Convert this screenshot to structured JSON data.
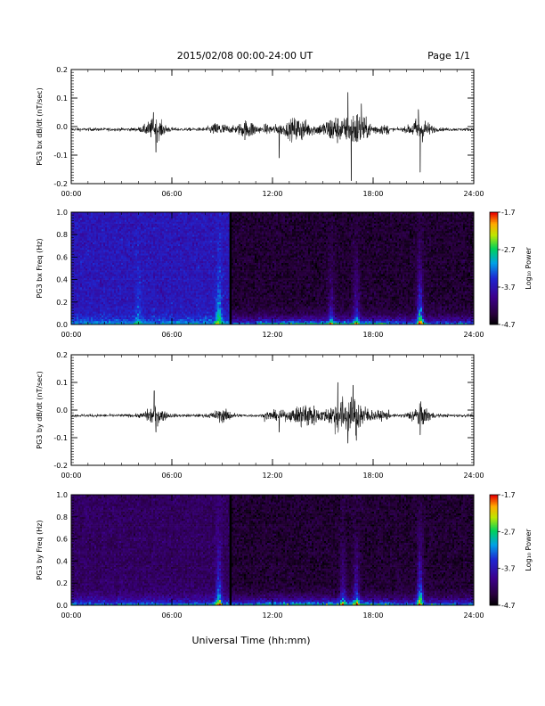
{
  "header": {
    "title": "2015/02/08  00:00-24:00 UT",
    "page": "Page 1/1"
  },
  "footer": {
    "xlabel": "Universal Time (hh:mm)"
  },
  "chart_data": [
    {
      "type": "line",
      "id": "bx-waveform",
      "ylabel": "PG3 bx dB/dt (nT/sec)",
      "xlim": [
        0,
        24
      ],
      "ylim": [
        -0.2,
        0.2
      ],
      "x_tick_labels": [
        "00:00",
        "06:00",
        "12:00",
        "18:00",
        "24:00"
      ],
      "x_tick_values": [
        0,
        6,
        12,
        18,
        24
      ],
      "y_ticks": [
        -0.2,
        -0.1,
        0.0,
        0.1,
        0.2
      ],
      "y_tick_labels": [
        "-0.2",
        "-0.1",
        "0.0",
        "0.1",
        "0.2"
      ],
      "baseline": -0.01,
      "noise_amplitude": 0.006,
      "activity": [
        {
          "t": 5.0,
          "amp": 0.035
        },
        {
          "t": 8.8,
          "amp": 0.02
        },
        {
          "t": 10.5,
          "amp": 0.03
        },
        {
          "t": 13.5,
          "amp": 0.03
        },
        {
          "t": 15.7,
          "amp": 0.035
        },
        {
          "t": 17.0,
          "amp": 0.05
        },
        {
          "t": 20.8,
          "amp": 0.04
        }
      ],
      "spikes": [
        {
          "t": 4.9,
          "y": 0.05
        },
        {
          "t": 5.05,
          "y": -0.09
        },
        {
          "t": 12.4,
          "y": -0.11
        },
        {
          "t": 16.5,
          "y": 0.12
        },
        {
          "t": 16.7,
          "y": -0.19
        },
        {
          "t": 17.3,
          "y": 0.08
        },
        {
          "t": 20.7,
          "y": 0.06
        },
        {
          "t": 20.8,
          "y": -0.16
        }
      ]
    },
    {
      "type": "heatmap",
      "id": "bx-spectrogram",
      "ylabel": "PG3 bx Freq (Hz)",
      "xlim": [
        0,
        24
      ],
      "ylim": [
        0.0,
        1.0
      ],
      "x_tick_labels": [
        "00:00",
        "06:00",
        "12:00",
        "18:00",
        "24:00"
      ],
      "x_tick_values": [
        0,
        6,
        12,
        18,
        24
      ],
      "y_ticks": [
        0.0,
        0.2,
        0.4,
        0.6,
        0.8,
        1.0
      ],
      "y_tick_labels": [
        "0.0",
        "0.2",
        "0.4",
        "0.6",
        "0.8",
        "1.0"
      ],
      "zlim": [
        -4.7,
        -1.7
      ],
      "colorbar_ticks": [
        -1.7,
        -2.7,
        -3.7,
        -4.7
      ],
      "colorbar_tick_labels": [
        "-1.7",
        "-2.7",
        "-3.7",
        "-4.7"
      ],
      "colorbar_label": "Log₁₀ Power",
      "data_gap_time": 9.5,
      "early_background": -3.65,
      "late_background": -4.45,
      "low_freq_level": -2.9,
      "bursts": [
        {
          "t": 4.0,
          "level": -3.1
        },
        {
          "t": 8.8,
          "level": -2.6
        },
        {
          "t": 15.5,
          "level": -3.4
        },
        {
          "t": 17.0,
          "level": -3.2
        },
        {
          "t": 20.8,
          "level": -2.3
        }
      ]
    },
    {
      "type": "line",
      "id": "by-waveform",
      "ylabel": "PG3 by dB/dt (nT/sec)",
      "xlim": [
        0,
        24
      ],
      "ylim": [
        -0.2,
        0.2
      ],
      "x_tick_labels": [
        "00:00",
        "06:00",
        "12:00",
        "18:00",
        "24:00"
      ],
      "x_tick_values": [
        0,
        6,
        12,
        18,
        24
      ],
      "y_ticks": [
        -0.2,
        -0.1,
        0.0,
        0.1,
        0.2
      ],
      "y_tick_labels": [
        "-0.2",
        "-0.1",
        "0.0",
        "0.1",
        "0.2"
      ],
      "baseline": -0.02,
      "noise_amplitude": 0.006,
      "activity": [
        {
          "t": 5.0,
          "amp": 0.03
        },
        {
          "t": 9.0,
          "amp": 0.02
        },
        {
          "t": 14.0,
          "amp": 0.035
        },
        {
          "t": 16.0,
          "amp": 0.05
        },
        {
          "t": 17.0,
          "amp": 0.045
        },
        {
          "t": 20.8,
          "amp": 0.035
        }
      ],
      "spikes": [
        {
          "t": 4.95,
          "y": 0.07
        },
        {
          "t": 5.05,
          "y": -0.08
        },
        {
          "t": 12.4,
          "y": -0.08
        },
        {
          "t": 15.9,
          "y": 0.1
        },
        {
          "t": 16.5,
          "y": -0.12
        },
        {
          "t": 16.8,
          "y": 0.09
        },
        {
          "t": 17.0,
          "y": -0.11
        },
        {
          "t": 20.8,
          "y": -0.09
        }
      ]
    },
    {
      "type": "heatmap",
      "id": "by-spectrogram",
      "ylabel": "PG3 by Freq (Hz)",
      "xlim": [
        0,
        24
      ],
      "ylim": [
        0.0,
        1.0
      ],
      "x_tick_labels": [
        "00:00",
        "06:00",
        "12:00",
        "18:00",
        "24:00"
      ],
      "x_tick_values": [
        0,
        6,
        12,
        18,
        24
      ],
      "y_ticks": [
        0.0,
        0.2,
        0.4,
        0.6,
        0.8,
        1.0
      ],
      "y_tick_labels": [
        "0.0",
        "0.2",
        "0.4",
        "0.6",
        "0.8",
        "1.0"
      ],
      "zlim": [
        -4.7,
        -1.7
      ],
      "colorbar_ticks": [
        -1.7,
        -2.7,
        -3.7,
        -4.7
      ],
      "colorbar_tick_labels": [
        "-1.7",
        "-2.7",
        "-3.7",
        "-4.7"
      ],
      "colorbar_label": "Log₁₀ Power",
      "data_gap_time": 9.5,
      "early_background": -4.2,
      "late_background": -4.45,
      "low_freq_level": -2.8,
      "bursts": [
        {
          "t": 8.8,
          "level": -2.5
        },
        {
          "t": 16.2,
          "level": -3.4
        },
        {
          "t": 17.0,
          "level": -3.1
        },
        {
          "t": 20.8,
          "level": -2.4
        }
      ]
    }
  ]
}
